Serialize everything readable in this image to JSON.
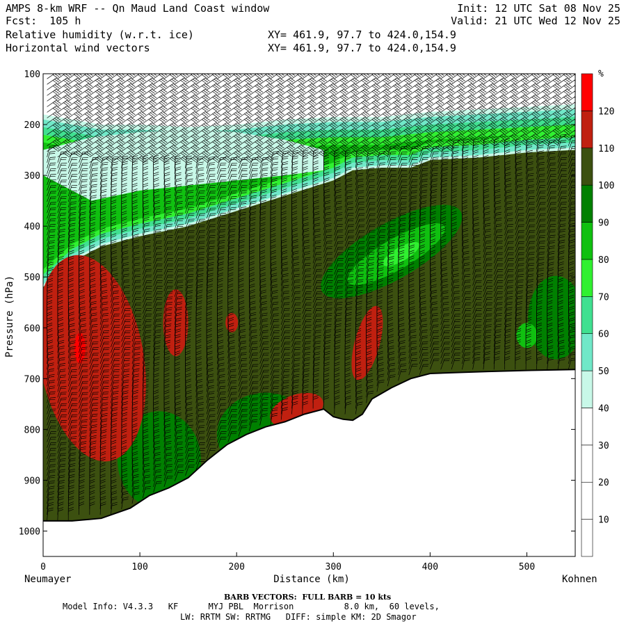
{
  "header": {
    "title": "AMPS 8-km WRF -- Qn Maud Land Coast window",
    "forecast": "Fcst:  105 h",
    "init": "Init: 12 UTC Sat 08 Nov 25",
    "valid": "Valid: 21 UTC Wed 12 Nov 25",
    "field1_name": "Relative humidity (w.r.t. ice)",
    "field1_xy": "XY= 461.9, 97.7 to 424.0,154.9",
    "field2_name": "Horizontal wind vectors",
    "field2_xy": "XY= 461.9, 97.7 to 424.0,154.9"
  },
  "footer": {
    "barb_note": "BARB VECTORS:  FULL BARB = 10 kts",
    "model_line1": "Model Info: V4.3.3   KF      MYJ PBL  Morrison          8.0 km,  60 levels,",
    "model_line2": "LW: RRTM SW: RRTMG   DIFF: simple KM: 2D Smagor"
  },
  "chart_data": {
    "type": "cross-section contour",
    "xlabel": "Distance (km)",
    "ylabel": "Pressure (hPa)",
    "x_left_label": "Neumayer",
    "x_right_label": "Kohnen",
    "xlim": [
      0,
      550
    ],
    "ylim": [
      100,
      1050
    ],
    "x_ticks": [
      0,
      100,
      200,
      300,
      400,
      500
    ],
    "y_ticks": [
      100,
      200,
      300,
      400,
      500,
      600,
      700,
      800,
      900,
      1000
    ],
    "colorbar": {
      "unit": "%",
      "levels": [
        10,
        20,
        30,
        40,
        50,
        60,
        70,
        80,
        90,
        100,
        110,
        120
      ],
      "colors": [
        "#ffffff",
        "#ffffff",
        "#ffffff",
        "#c8f8e8",
        "#70e8c8",
        "#40e090",
        "#30f030",
        "#10c010",
        "#008000",
        "#3c5010",
        "#c02010",
        "#ff0000"
      ]
    },
    "terrain": {
      "x": [
        0,
        30,
        60,
        90,
        110,
        130,
        150,
        170,
        190,
        210,
        230,
        250,
        270,
        290,
        300,
        310,
        320,
        330,
        340,
        360,
        380,
        400,
        430,
        460,
        500,
        550
      ],
      "p": [
        980,
        980,
        975,
        955,
        930,
        915,
        895,
        860,
        830,
        810,
        795,
        785,
        770,
        760,
        775,
        780,
        782,
        770,
        740,
        718,
        700,
        690,
        688,
        686,
        684,
        682
      ]
    },
    "tropopause_top": {
      "x": [
        0,
        30,
        60,
        100,
        150,
        200,
        250,
        300,
        350,
        400,
        450,
        500,
        550
      ],
      "p": [
        180,
        190,
        200,
        200,
        205,
        200,
        190,
        185,
        185,
        175,
        170,
        165,
        160
      ]
    },
    "moist_top": {
      "x": [
        0,
        30,
        60,
        100,
        150,
        200,
        250,
        300,
        320,
        350,
        380,
        400,
        450,
        500,
        550
      ],
      "p": [
        520,
        470,
        440,
        420,
        400,
        370,
        340,
        310,
        290,
        285,
        285,
        270,
        265,
        255,
        250
      ]
    },
    "dry_layer": {
      "x": [
        0,
        50,
        100,
        150,
        200,
        250,
        290
      ],
      "p_top": [
        250,
        225,
        215,
        210,
        215,
        230,
        250
      ],
      "p_bottom": [
        300,
        350,
        330,
        320,
        310,
        300,
        290
      ]
    }
  }
}
